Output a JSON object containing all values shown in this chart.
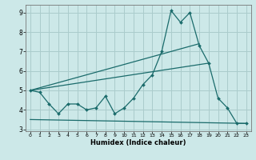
{
  "title": "",
  "xlabel": "Humidex (Indice chaleur)",
  "ylabel": "",
  "background_color": "#cce8e8",
  "grid_color": "#aacccc",
  "line_color": "#1a6b6b",
  "xlim": [
    -0.5,
    23.5
  ],
  "ylim": [
    2.9,
    9.4
  ],
  "yticks": [
    3,
    4,
    5,
    6,
    7,
    8,
    9
  ],
  "xticks": [
    0,
    1,
    2,
    3,
    4,
    5,
    6,
    7,
    8,
    9,
    10,
    11,
    12,
    13,
    14,
    15,
    16,
    17,
    18,
    19,
    20,
    21,
    22,
    23
  ],
  "series1_x": [
    0,
    1,
    2,
    3,
    4,
    5,
    6,
    7,
    8,
    9,
    10,
    11,
    12,
    13,
    14,
    15,
    16,
    17,
    18,
    19,
    20,
    21,
    22,
    23
  ],
  "series1_y": [
    5.0,
    4.9,
    4.3,
    3.8,
    4.3,
    4.3,
    4.0,
    4.1,
    4.7,
    3.8,
    4.1,
    4.6,
    5.3,
    5.8,
    7.0,
    9.1,
    8.5,
    9.0,
    7.3,
    6.4,
    4.6,
    4.1,
    3.3,
    3.3
  ],
  "series2_x": [
    0,
    19
  ],
  "series2_y": [
    5.0,
    6.4
  ],
  "series3_x": [
    0,
    18
  ],
  "series3_y": [
    5.0,
    7.4
  ],
  "series4_x": [
    0,
    23
  ],
  "series4_y": [
    3.5,
    3.3
  ]
}
